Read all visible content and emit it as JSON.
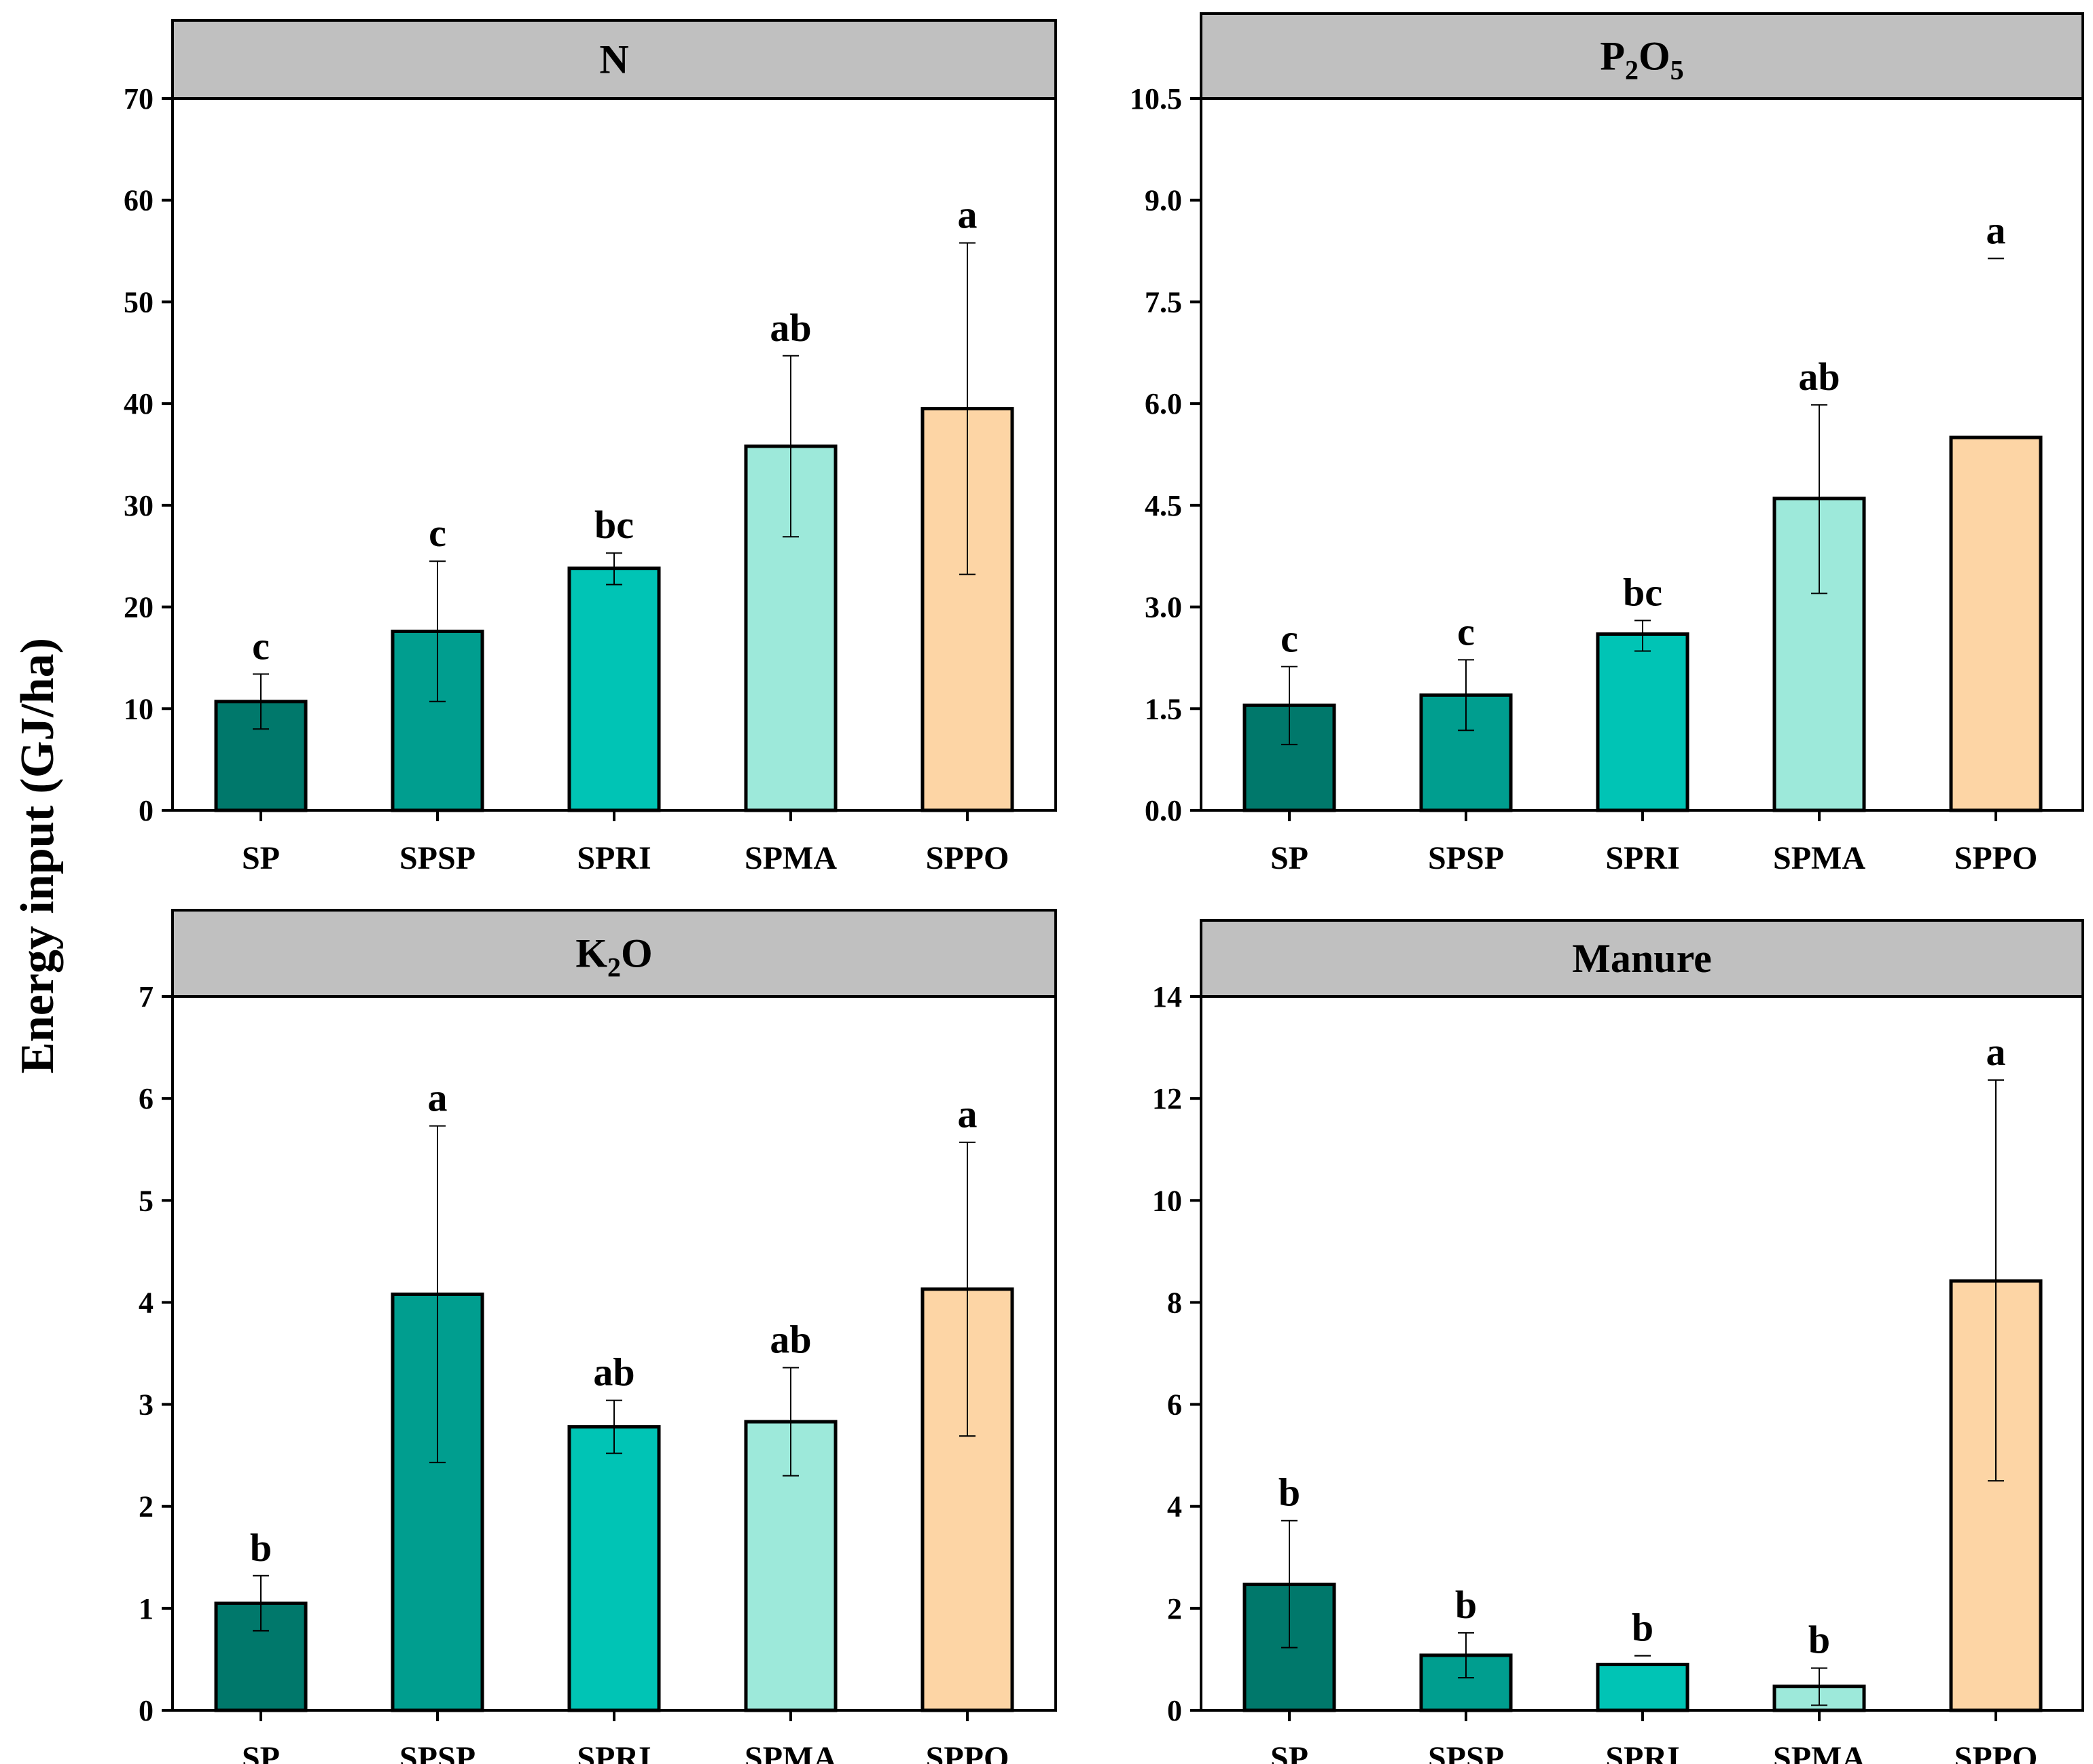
{
  "figure": {
    "ylabel": "Energy input (GJ/ha)"
  },
  "chart_data": [
    {
      "type": "bar",
      "title": "N",
      "xlabel": "",
      "ylabel": "Energy input (GJ/ha)",
      "categories": [
        "SP",
        "SPSP",
        "SPRI",
        "SPMA",
        "SPPO"
      ],
      "values": [
        10.7,
        17.6,
        23.8,
        35.8,
        39.5
      ],
      "error_low": [
        8.0,
        10.7,
        22.2,
        26.9,
        23.2
      ],
      "error_high": [
        13.4,
        24.5,
        25.3,
        44.7,
        55.8
      ],
      "significance": [
        "c",
        "c",
        "bc",
        "ab",
        "a"
      ],
      "ylim": [
        0,
        70
      ],
      "yticks": [
        "0",
        "10",
        "20",
        "30",
        "40",
        "50",
        "60",
        "70"
      ],
      "colors": [
        "#00786b",
        "#009e8f",
        "#00c4b5",
        "#9de9da",
        "#fdd5a5"
      ],
      "grid": false
    },
    {
      "type": "bar",
      "title": "P2O5",
      "title_parts": {
        "main": "P",
        "sub1": "2",
        "mid": "O",
        "sub2": "5"
      },
      "xlabel": "",
      "ylabel": "Energy input (GJ/ha)",
      "categories": [
        "SP",
        "SPSP",
        "SPRI",
        "SPMA",
        "SPPO"
      ],
      "values": [
        1.55,
        1.7,
        2.6,
        4.6,
        5.5
      ],
      "error_low": [
        0.97,
        1.18,
        2.35,
        3.2,
        8.14
      ],
      "error_high": [
        2.12,
        2.22,
        2.8,
        5.98,
        8.14
      ],
      "significance": [
        "c",
        "c",
        "bc",
        "ab",
        "a"
      ],
      "ylim": [
        0,
        10.5
      ],
      "yticks": [
        "0.0",
        "1.5",
        "3.0",
        "4.5",
        "6.0",
        "7.5",
        "9.0",
        "10.5"
      ],
      "colors": [
        "#00786b",
        "#009e8f",
        "#00c4b5",
        "#9de9da",
        "#fdd5a5"
      ],
      "grid": false
    },
    {
      "type": "bar",
      "title": "K2O",
      "title_parts": {
        "main": "K",
        "sub1": "2",
        "mid": "O",
        "sub2": ""
      },
      "xlabel": "",
      "ylabel": "Energy input (GJ/ha)",
      "categories": [
        "SP",
        "SPSP",
        "SPRI",
        "SPMA",
        "SPPO"
      ],
      "values": [
        1.05,
        4.08,
        2.78,
        2.83,
        4.13
      ],
      "error_low": [
        0.78,
        2.43,
        2.52,
        2.3,
        2.69
      ],
      "error_high": [
        1.32,
        5.73,
        3.04,
        3.36,
        5.57
      ],
      "significance": [
        "b",
        "a",
        "ab",
        "ab",
        "a"
      ],
      "ylim": [
        0,
        7
      ],
      "yticks": [
        "0",
        "1",
        "2",
        "3",
        "4",
        "5",
        "6",
        "7"
      ],
      "colors": [
        "#00786b",
        "#009e8f",
        "#00c4b5",
        "#9de9da",
        "#fdd5a5"
      ],
      "grid": false
    },
    {
      "type": "bar",
      "title": "Manure",
      "xlabel": "",
      "ylabel": "Energy input (GJ/ha)",
      "categories": [
        "SP",
        "SPSP",
        "SPRI",
        "SPMA",
        "SPPO"
      ],
      "values": [
        2.47,
        1.08,
        0.9,
        0.47,
        8.42
      ],
      "error_low": [
        1.23,
        0.64,
        1.07,
        0.1,
        4.5
      ],
      "error_high": [
        3.72,
        1.52,
        1.07,
        0.83,
        12.36
      ],
      "significance": [
        "b",
        "b",
        "b",
        "b",
        "a"
      ],
      "ylim": [
        0,
        14
      ],
      "yticks": [
        "0",
        "2",
        "4",
        "6",
        "8",
        "10",
        "12",
        "14"
      ],
      "colors": [
        "#00786b",
        "#009e8f",
        "#00c4b5",
        "#9de9da",
        "#fdd5a5"
      ],
      "grid": false
    }
  ]
}
